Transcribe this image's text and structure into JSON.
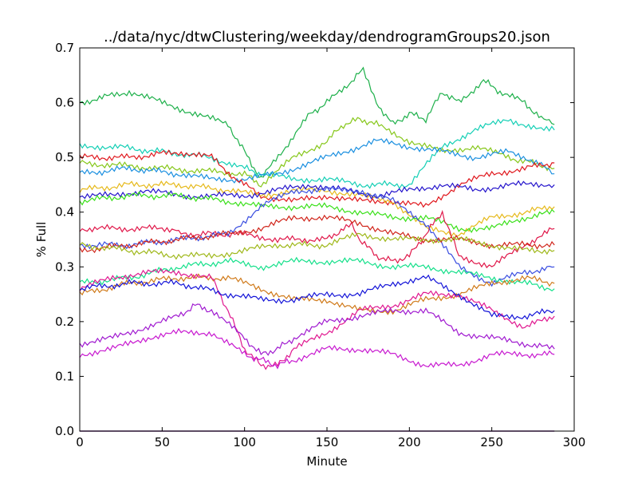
{
  "chart_data": {
    "type": "line",
    "title": "../data/nyc/dtwClustering/weekday/dendrogramGroups20.json",
    "xlabel": "Minute",
    "ylabel": "% Full",
    "xlim": [
      0,
      300
    ],
    "ylim": [
      0.0,
      0.7
    ],
    "xticks": [
      0,
      50,
      100,
      150,
      200,
      250,
      300
    ],
    "yticks": [
      0.0,
      0.1,
      0.2,
      0.3,
      0.4,
      0.5,
      0.6,
      0.7
    ],
    "xtick_labels": [
      "0",
      "50",
      "100",
      "150",
      "200",
      "250",
      "300"
    ],
    "ytick_labels": [
      "0.0",
      "0.1",
      "0.2",
      "0.3",
      "0.4",
      "0.5",
      "0.6",
      "0.7"
    ],
    "grid": false,
    "legend": "none",
    "series": [
      {
        "color": "#1db04a",
        "x": [
          0,
          15,
          30,
          50,
          70,
          90,
          100,
          110,
          125,
          140,
          150,
          165,
          172,
          180,
          190,
          200,
          210,
          220,
          230,
          245,
          255,
          270,
          280,
          288
        ],
        "y": [
          0.6,
          0.61,
          0.62,
          0.6,
          0.58,
          0.56,
          0.51,
          0.46,
          0.52,
          0.58,
          0.6,
          0.64,
          0.66,
          0.6,
          0.56,
          0.58,
          0.57,
          0.62,
          0.6,
          0.64,
          0.62,
          0.6,
          0.57,
          0.56
        ]
      },
      {
        "color": "#14cfb5",
        "x": [
          0,
          20,
          50,
          80,
          100,
          110,
          130,
          150,
          170,
          200,
          220,
          240,
          260,
          280,
          288
        ],
        "y": [
          0.52,
          0.52,
          0.51,
          0.5,
          0.48,
          0.47,
          0.46,
          0.46,
          0.45,
          0.45,
          0.52,
          0.55,
          0.57,
          0.55,
          0.55
        ]
      },
      {
        "color": "#86c71a",
        "x": [
          0,
          50,
          100,
          110,
          130,
          150,
          160,
          170,
          180,
          200,
          220,
          240,
          260,
          288
        ],
        "y": [
          0.49,
          0.48,
          0.47,
          0.45,
          0.5,
          0.53,
          0.56,
          0.57,
          0.56,
          0.53,
          0.51,
          0.52,
          0.5,
          0.48
        ]
      },
      {
        "color": "#1a8fe0",
        "x": [
          0,
          30,
          60,
          80,
          100,
          120,
          140,
          160,
          180,
          200,
          220,
          240,
          260,
          280,
          288
        ],
        "y": [
          0.47,
          0.48,
          0.47,
          0.46,
          0.46,
          0.47,
          0.49,
          0.51,
          0.53,
          0.52,
          0.51,
          0.5,
          0.51,
          0.49,
          0.47
        ]
      },
      {
        "color": "#e0181e",
        "x": [
          0,
          30,
          60,
          80,
          95,
          110,
          130,
          150,
          170,
          190,
          210,
          230,
          250,
          270,
          288
        ],
        "y": [
          0.5,
          0.5,
          0.51,
          0.5,
          0.46,
          0.43,
          0.42,
          0.43,
          0.42,
          0.42,
          0.41,
          0.45,
          0.47,
          0.48,
          0.49
        ]
      },
      {
        "color": "#e6b91a",
        "x": [
          0,
          30,
          60,
          90,
          110,
          130,
          150,
          170,
          190,
          210,
          230,
          250,
          270,
          288
        ],
        "y": [
          0.44,
          0.45,
          0.45,
          0.44,
          0.43,
          0.44,
          0.44,
          0.43,
          0.42,
          0.37,
          0.36,
          0.39,
          0.4,
          0.41
        ]
      },
      {
        "color": "#2414cc",
        "x": [
          0,
          20,
          40,
          60,
          80,
          100,
          120,
          140,
          160,
          180,
          200,
          220,
          240,
          260,
          280,
          288
        ],
        "y": [
          0.43,
          0.43,
          0.44,
          0.43,
          0.43,
          0.43,
          0.44,
          0.45,
          0.44,
          0.43,
          0.44,
          0.45,
          0.44,
          0.45,
          0.45,
          0.45
        ]
      },
      {
        "color": "#3ae01a",
        "x": [
          0,
          30,
          60,
          90,
          110,
          130,
          150,
          170,
          190,
          210,
          230,
          250,
          270,
          288
        ],
        "y": [
          0.42,
          0.43,
          0.43,
          0.42,
          0.41,
          0.41,
          0.41,
          0.4,
          0.39,
          0.39,
          0.37,
          0.37,
          0.39,
          0.4
        ]
      },
      {
        "color": "#e0184a",
        "x": [
          0,
          59,
          60,
          100,
          120,
          150,
          160,
          165,
          170,
          180,
          190,
          200,
          210,
          220,
          230,
          250,
          270,
          288
        ],
        "y": [
          0.37,
          0.37,
          0.36,
          0.36,
          0.35,
          0.35,
          0.37,
          0.38,
          0.35,
          0.32,
          0.31,
          0.32,
          0.36,
          0.4,
          0.32,
          0.3,
          0.34,
          0.37
        ]
      },
      {
        "color": "#3a4ee0",
        "x": [
          0,
          30,
          60,
          90,
          110,
          130,
          150,
          170,
          190,
          210,
          230,
          250,
          270,
          288
        ],
        "y": [
          0.34,
          0.34,
          0.35,
          0.36,
          0.41,
          0.44,
          0.44,
          0.44,
          0.42,
          0.38,
          0.3,
          0.27,
          0.29,
          0.3
        ]
      },
      {
        "color": "#d0241a",
        "x": [
          0,
          30,
          60,
          90,
          110,
          130,
          150,
          170,
          190,
          210,
          230,
          250,
          270,
          288
        ],
        "y": [
          0.33,
          0.34,
          0.35,
          0.36,
          0.37,
          0.39,
          0.39,
          0.38,
          0.36,
          0.35,
          0.35,
          0.34,
          0.34,
          0.34
        ]
      },
      {
        "color": "#9fb81a",
        "x": [
          0,
          30,
          60,
          80,
          100,
          120,
          150,
          170,
          190,
          210,
          230,
          250,
          270,
          288
        ],
        "y": [
          0.34,
          0.33,
          0.32,
          0.32,
          0.33,
          0.34,
          0.34,
          0.36,
          0.35,
          0.35,
          0.35,
          0.34,
          0.33,
          0.33
        ]
      },
      {
        "color": "#14e08a",
        "x": [
          0,
          30,
          60,
          90,
          110,
          130,
          150,
          170,
          190,
          210,
          230,
          250,
          270,
          288
        ],
        "y": [
          0.27,
          0.28,
          0.3,
          0.31,
          0.3,
          0.31,
          0.31,
          0.31,
          0.3,
          0.3,
          0.29,
          0.28,
          0.27,
          0.26
        ]
      },
      {
        "color": "#d07a1a",
        "x": [
          0,
          30,
          60,
          90,
          110,
          130,
          150,
          170,
          190,
          210,
          230,
          250,
          270,
          288
        ],
        "y": [
          0.25,
          0.27,
          0.28,
          0.28,
          0.26,
          0.24,
          0.24,
          0.22,
          0.22,
          0.24,
          0.25,
          0.27,
          0.28,
          0.27
        ]
      },
      {
        "color": "#e01890",
        "x": [
          0,
          20,
          40,
          60,
          80,
          90,
          100,
          110,
          120,
          130,
          150,
          170,
          190,
          210,
          230,
          250,
          270,
          288
        ],
        "y": [
          0.26,
          0.28,
          0.29,
          0.29,
          0.28,
          0.22,
          0.15,
          0.12,
          0.12,
          0.15,
          0.18,
          0.22,
          0.23,
          0.25,
          0.25,
          0.22,
          0.19,
          0.21
        ]
      },
      {
        "color": "#1414d8",
        "x": [
          0,
          30,
          60,
          90,
          110,
          130,
          150,
          170,
          190,
          210,
          230,
          250,
          270,
          288
        ],
        "y": [
          0.26,
          0.27,
          0.27,
          0.25,
          0.24,
          0.24,
          0.25,
          0.25,
          0.27,
          0.28,
          0.25,
          0.21,
          0.21,
          0.22
        ]
      },
      {
        "color": "#a01ad0",
        "x": [
          0,
          20,
          40,
          60,
          70,
          80,
          100,
          110,
          120,
          130,
          150,
          170,
          190,
          210,
          230,
          250,
          270,
          288
        ],
        "y": [
          0.16,
          0.17,
          0.19,
          0.21,
          0.23,
          0.22,
          0.17,
          0.14,
          0.15,
          0.17,
          0.2,
          0.21,
          0.22,
          0.22,
          0.18,
          0.17,
          0.16,
          0.15
        ]
      },
      {
        "color": "#c81ad0",
        "x": [
          0,
          20,
          40,
          60,
          80,
          100,
          110,
          120,
          130,
          150,
          170,
          190,
          210,
          230,
          250,
          270,
          288
        ],
        "y": [
          0.14,
          0.15,
          0.17,
          0.18,
          0.18,
          0.14,
          0.13,
          0.12,
          0.13,
          0.15,
          0.15,
          0.14,
          0.12,
          0.12,
          0.14,
          0.14,
          0.14
        ]
      },
      {
        "color": "#c81a1a",
        "x": [
          0,
          288
        ],
        "y": [
          0.0,
          0.0
        ]
      },
      {
        "color": "#1a1ad0",
        "x": [
          0,
          288
        ],
        "y": [
          0.0,
          0.0
        ]
      }
    ]
  }
}
